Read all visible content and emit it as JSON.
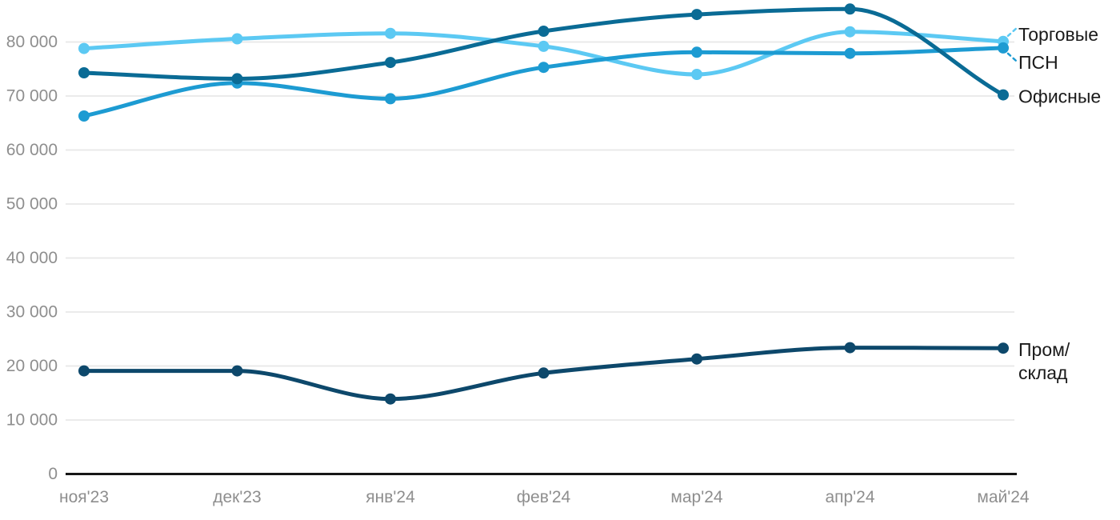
{
  "chart_data": {
    "type": "line",
    "title": "",
    "xlabel": "",
    "ylabel": "",
    "categories": [
      "ноя'23",
      "дек'23",
      "янв'24",
      "фев'24",
      "мар'24",
      "апр'24",
      "май'24"
    ],
    "yticks": [
      0,
      10000,
      20000,
      30000,
      40000,
      50000,
      60000,
      70000,
      80000
    ],
    "ylim": [
      0,
      88000
    ],
    "grid": true,
    "legend_position": "end-of-line-labels-right",
    "line_style": "smooth-monotone-with-point-markers",
    "series": [
      {
        "name": "Торговые",
        "label_lines": [
          "Торговые"
        ],
        "color": "#5cc9f3",
        "values": [
          78800,
          80600,
          81600,
          79200,
          74000,
          81900,
          80100
        ],
        "leader": true,
        "label_dy": -9
      },
      {
        "name": "ПСН",
        "label_lines": [
          "ПСН"
        ],
        "color": "#1d9bd2",
        "values": [
          66300,
          72400,
          69500,
          75300,
          78100,
          77900,
          78900
        ],
        "leader": true,
        "label_dy": 18
      },
      {
        "name": "Офисные",
        "label_lines": [
          "Офисные"
        ],
        "color": "#0a6b95",
        "values": [
          74300,
          73200,
          76200,
          82000,
          85100,
          86100,
          70200
        ],
        "leader": false,
        "label_dy": 2
      },
      {
        "name": "Пром/склад",
        "label_lines": [
          "Пром/",
          "склад"
        ],
        "color": "#0d486b",
        "values": [
          19100,
          19100,
          13900,
          18700,
          21300,
          23400,
          23300
        ],
        "leader": false,
        "label_dy": 2
      }
    ]
  },
  "colors": {
    "background": "#ffffff",
    "gridline": "#e8e8e8",
    "axis_baseline": "#161616",
    "tick_label": "#8e8e8e",
    "series_label": "#1a1a1a"
  }
}
